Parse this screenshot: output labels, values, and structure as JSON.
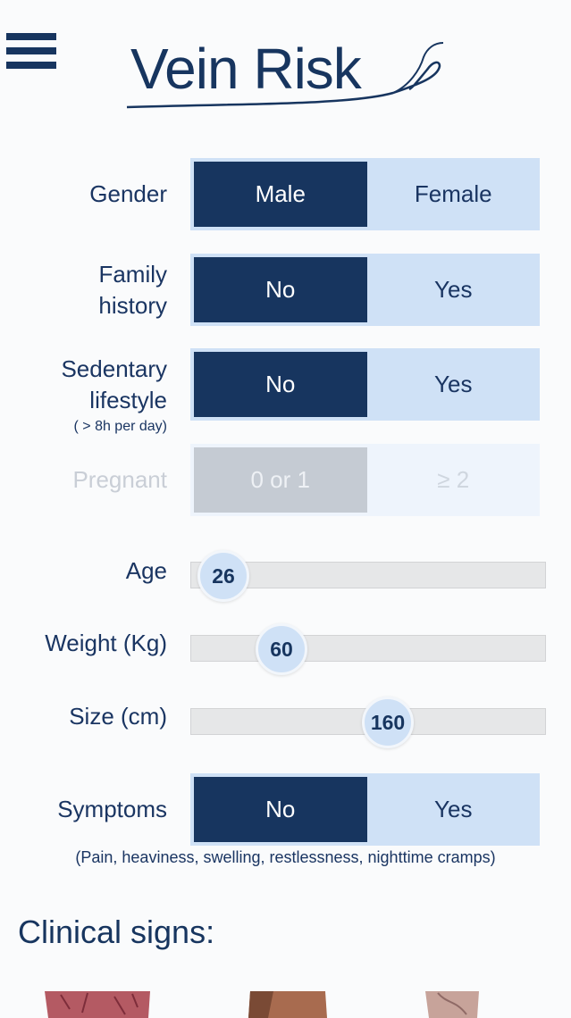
{
  "header": {
    "logo_text": "Vein Risk"
  },
  "gender": {
    "label": "Gender",
    "options": [
      "Male",
      "Female"
    ],
    "selected": "Male"
  },
  "family_history": {
    "label_line1": "Family",
    "label_line2": "history",
    "options": [
      "No",
      "Yes"
    ],
    "selected": "No"
  },
  "sedentary": {
    "label_line1": "Sedentary",
    "label_line2": "lifestyle",
    "note": "( > 8h per day)",
    "options": [
      "No",
      "Yes"
    ],
    "selected": "No"
  },
  "pregnant": {
    "label": "Pregnant",
    "options": [
      "0 or 1",
      "≥ 2"
    ],
    "selected": "0 or 1",
    "enabled": false
  },
  "age": {
    "label": "Age",
    "value": "26"
  },
  "weight": {
    "label": "Weight (Kg)",
    "value": "60"
  },
  "size": {
    "label": "Size (cm)",
    "value": "160"
  },
  "symptoms": {
    "label": "Symptoms",
    "options": [
      "No",
      "Yes"
    ],
    "selected": "No",
    "note": "(Pain, heaviness, swelling, restlessness, nighttime cramps)"
  },
  "clinical_signs": {
    "title": "Clinical signs:"
  },
  "colors": {
    "primary": "#17355f",
    "light": "#cfe1f6",
    "track": "#e6e7e8"
  }
}
